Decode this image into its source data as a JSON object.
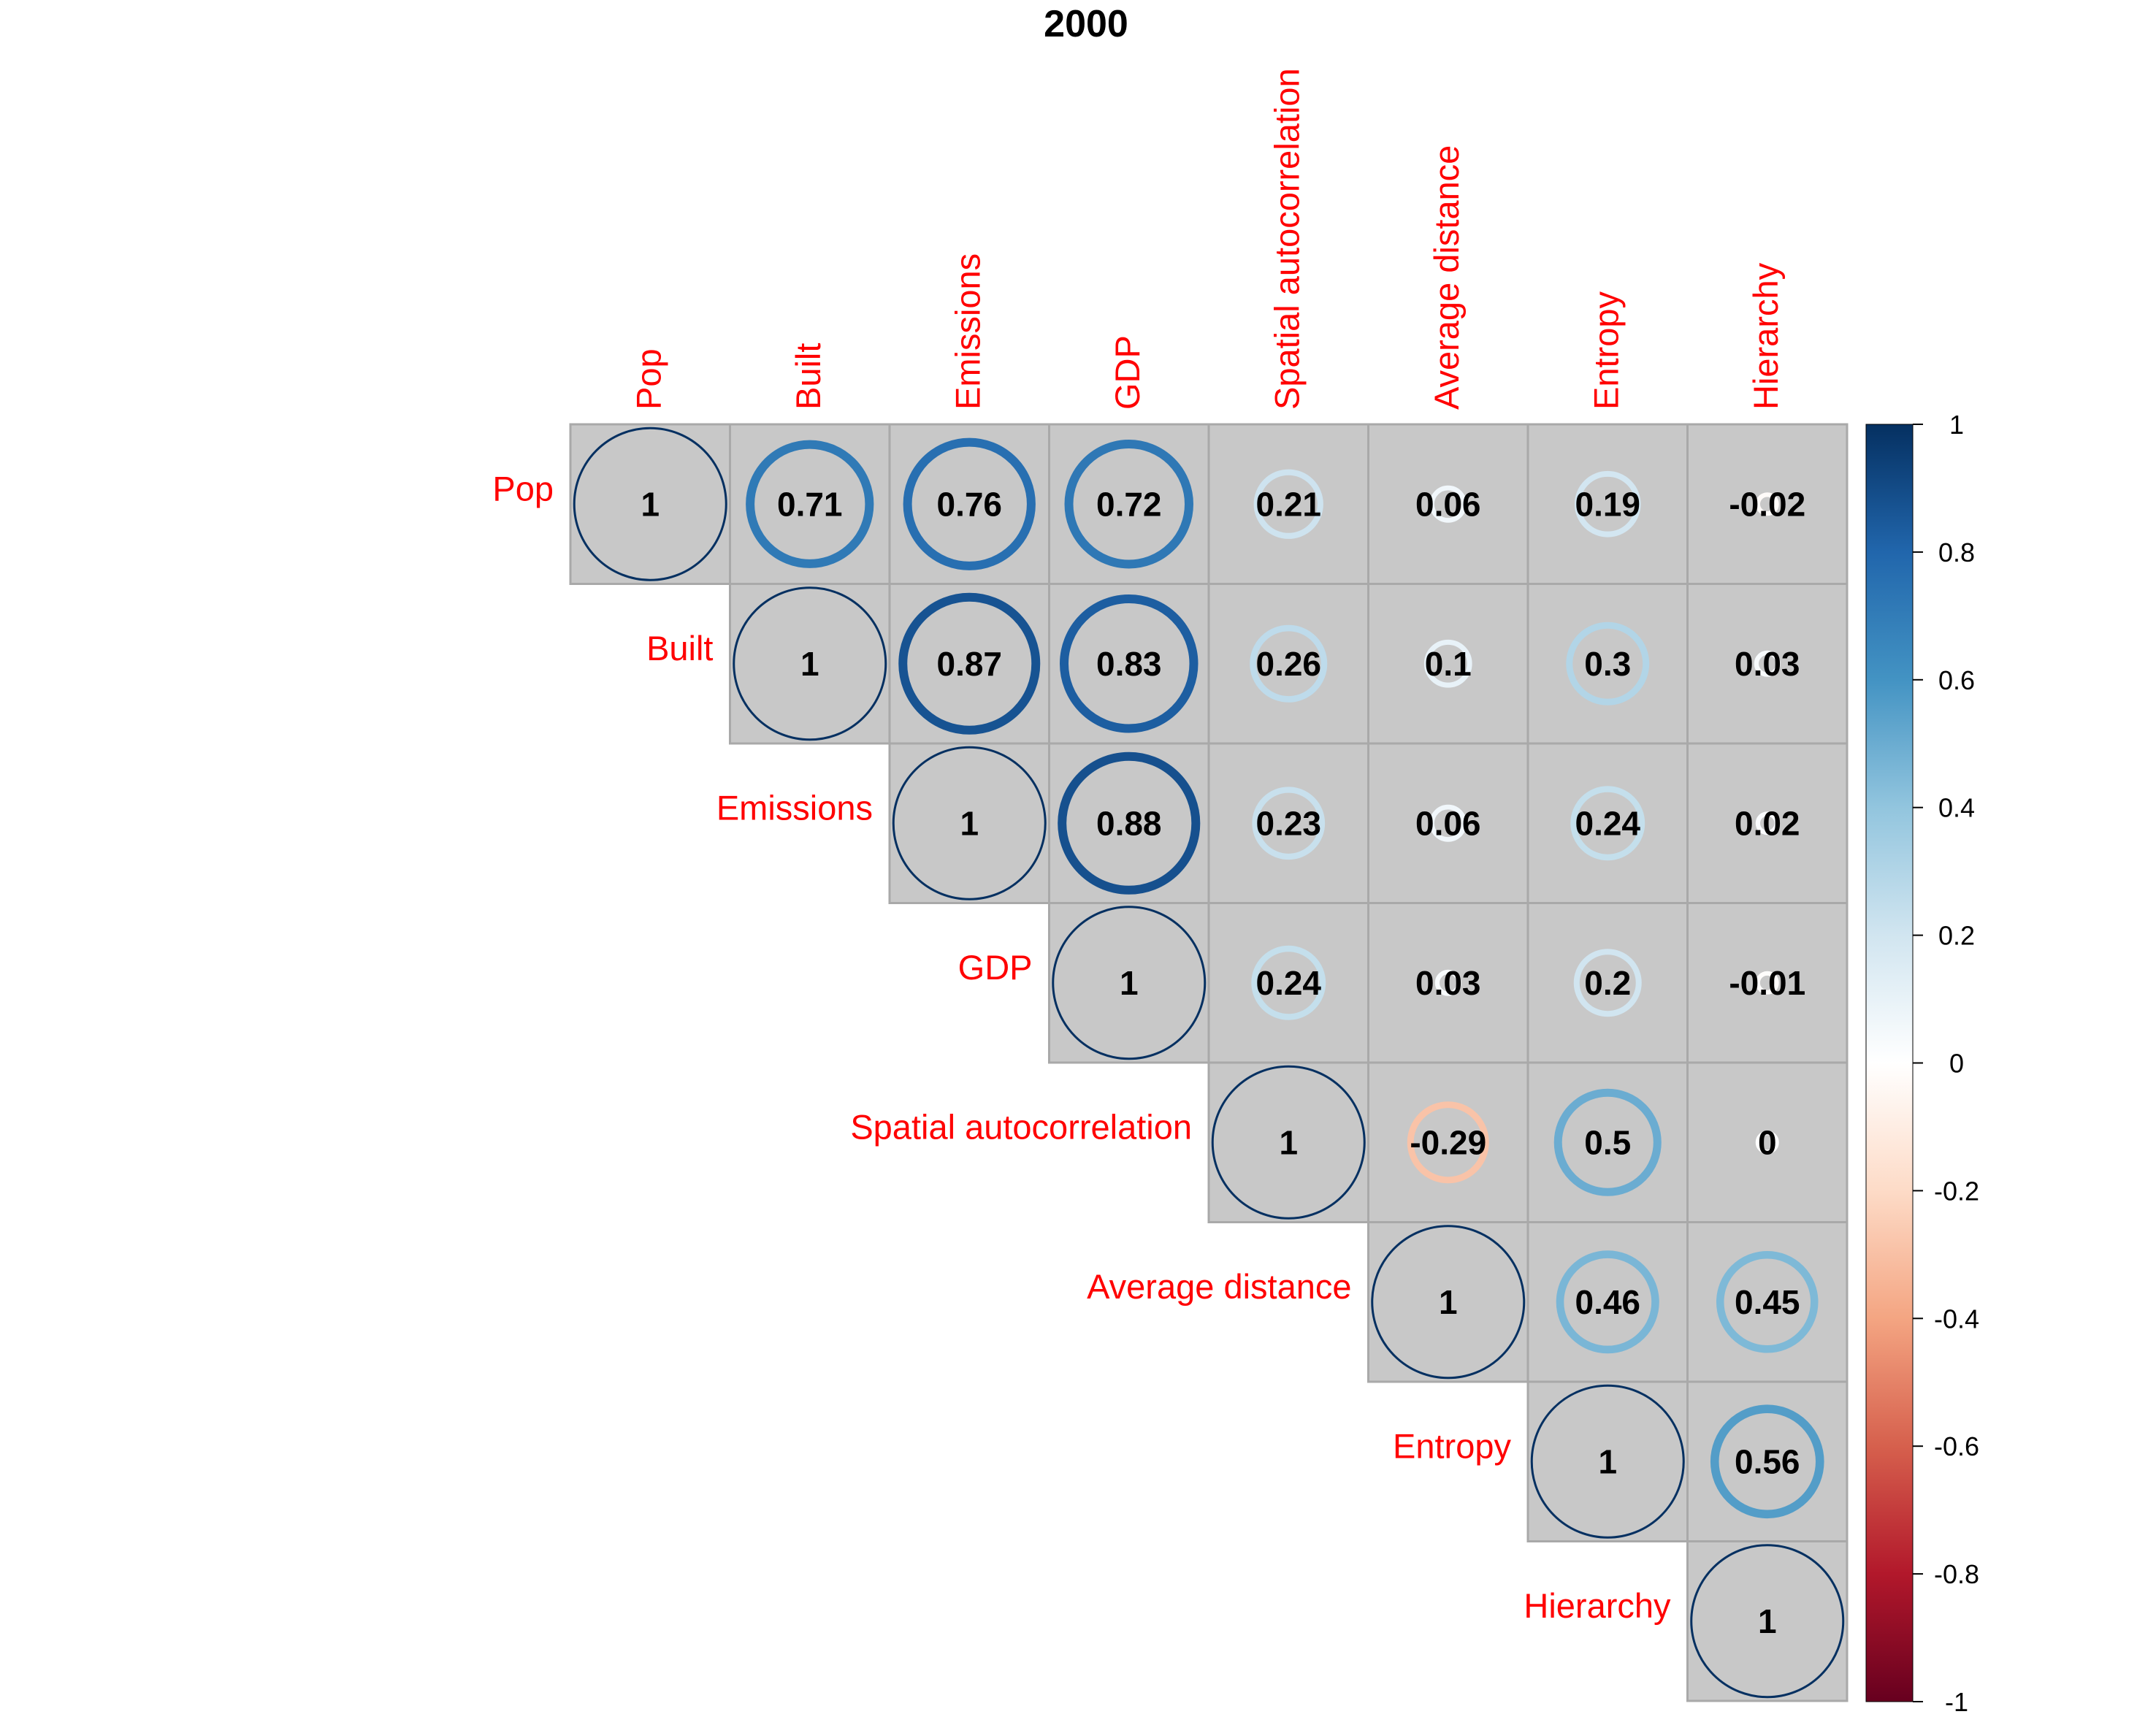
{
  "chart_data": {
    "type": "heatmap",
    "title": "2000",
    "variables": [
      "Pop",
      "Built",
      "Emissions",
      "GDP",
      "Spatial autocorrelation",
      "Average distance",
      "Entropy",
      "Hierarchy"
    ],
    "matrix_shape": "upper-triangle",
    "values": [
      [
        1,
        0.71,
        0.76,
        0.72,
        0.21,
        0.06,
        0.19,
        -0.02
      ],
      [
        null,
        1,
        0.87,
        0.83,
        0.26,
        0.1,
        0.3,
        0.03
      ],
      [
        null,
        null,
        1,
        0.88,
        0.23,
        0.06,
        0.24,
        0.02
      ],
      [
        null,
        null,
        null,
        1,
        0.24,
        0.03,
        0.2,
        -0.01
      ],
      [
        null,
        null,
        null,
        null,
        1,
        -0.29,
        0.5,
        0
      ],
      [
        null,
        null,
        null,
        null,
        null,
        1,
        0.46,
        0.45
      ],
      [
        null,
        null,
        null,
        null,
        null,
        null,
        1,
        0.56
      ],
      [
        null,
        null,
        null,
        null,
        null,
        null,
        null,
        1
      ]
    ],
    "value_labels": [
      [
        "1",
        "0.71",
        "0.76",
        "0.72",
        "0.21",
        "0.06",
        "0.19",
        "-0.02"
      ],
      [
        null,
        "1",
        "0.87",
        "0.83",
        "0.26",
        "0.1",
        "0.3",
        "0.03"
      ],
      [
        null,
        null,
        "1",
        "0.88",
        "0.23",
        "0.06",
        "0.24",
        "0.02"
      ],
      [
        null,
        null,
        null,
        "1",
        "0.24",
        "0.03",
        "0.2",
        "-0.01"
      ],
      [
        null,
        null,
        null,
        null,
        "1",
        "-0.29",
        "0.5",
        "0"
      ],
      [
        null,
        null,
        null,
        null,
        null,
        "1",
        "0.46",
        "0.45"
      ],
      [
        null,
        null,
        null,
        null,
        null,
        null,
        "1",
        "0.56"
      ],
      [
        null,
        null,
        null,
        null,
        null,
        null,
        null,
        "1"
      ]
    ],
    "colorbar": {
      "range": [
        -1,
        1
      ],
      "ticks": [
        "1",
        "0.8",
        "0.6",
        "0.4",
        "0.2",
        "0",
        "-0.2",
        "-0.4",
        "-0.6",
        "-0.8",
        "-1"
      ],
      "tick_values": [
        1,
        0.8,
        0.6,
        0.4,
        0.2,
        0,
        -0.2,
        -0.4,
        -0.6,
        -0.8,
        -1
      ],
      "palette": [
        "#67001F",
        "#B2182B",
        "#D6604D",
        "#F4A582",
        "#FDDBC7",
        "#FFFFFF",
        "#D1E5F0",
        "#92C5DE",
        "#4393C3",
        "#2166AC",
        "#053061"
      ]
    },
    "cell_background": "#c8c8c8",
    "grid_color": "#a9a9a9",
    "label_color": "#ff0000"
  }
}
